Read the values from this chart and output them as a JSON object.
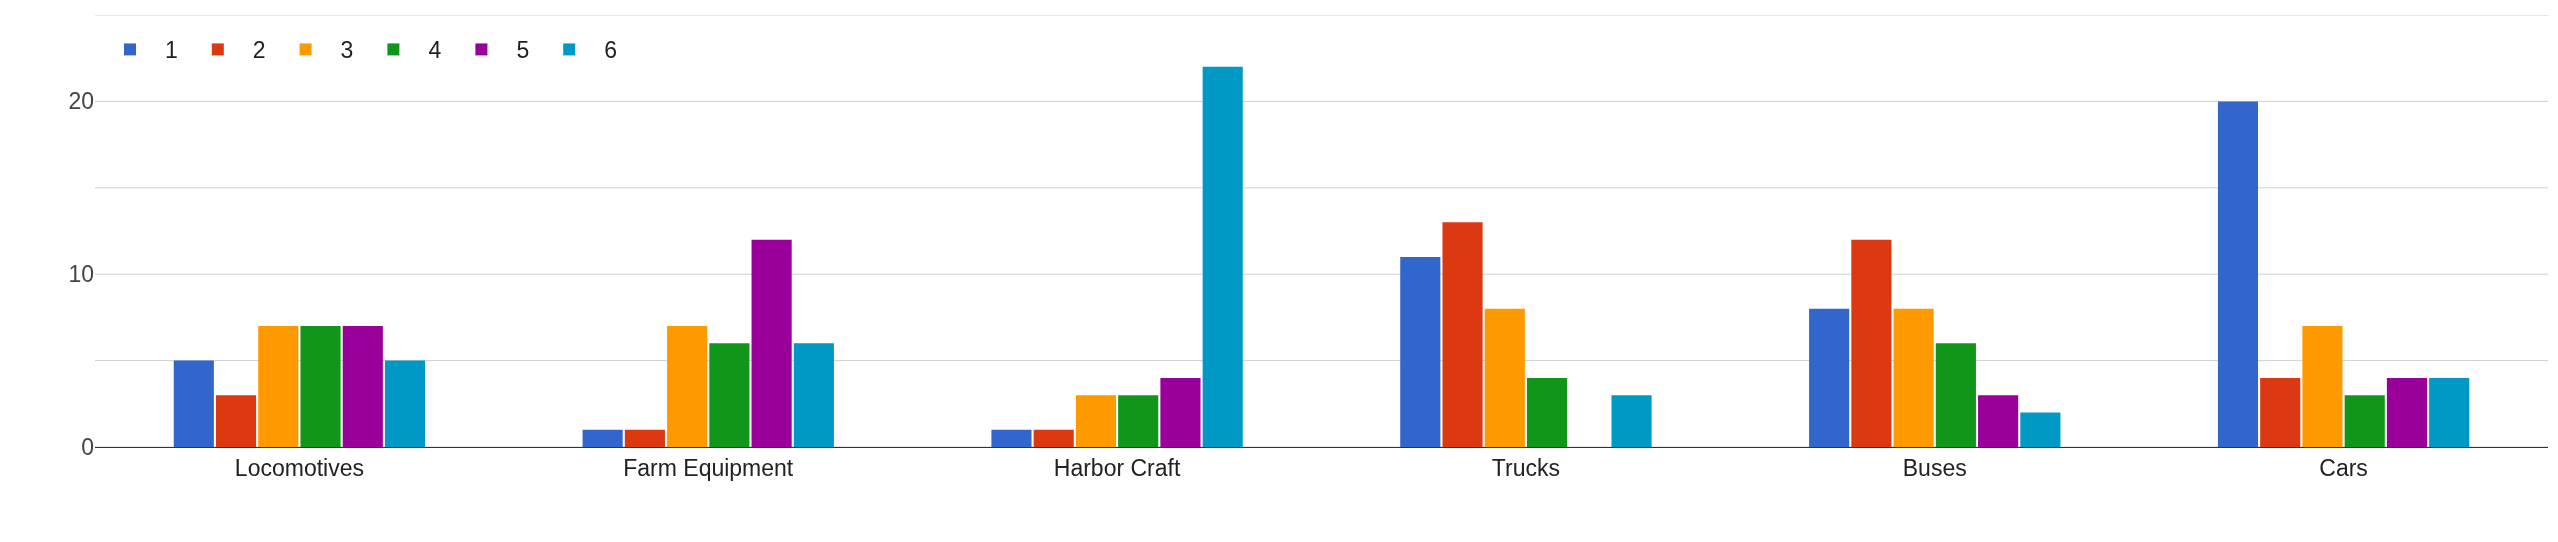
{
  "chart_data": {
    "type": "bar",
    "categories": [
      "Locomotives",
      "Farm Equipment",
      "Harbor Craft",
      "Trucks",
      "Buses",
      "Cars"
    ],
    "series": [
      {
        "name": "1",
        "color": "#3366cc",
        "values": [
          5,
          1,
          1,
          11,
          8,
          20
        ]
      },
      {
        "name": "2",
        "color": "#dc3912",
        "values": [
          3,
          1,
          1,
          13,
          12,
          4
        ]
      },
      {
        "name": "3",
        "color": "#ff9900",
        "values": [
          7,
          7,
          3,
          8,
          8,
          7
        ]
      },
      {
        "name": "4",
        "color": "#109618",
        "values": [
          7,
          6,
          3,
          4,
          6,
          3
        ]
      },
      {
        "name": "5",
        "color": "#990099",
        "values": [
          7,
          12,
          4,
          null,
          3,
          4
        ]
      },
      {
        "name": "6",
        "color": "#0099c6",
        "values": [
          5,
          6,
          22,
          3,
          2,
          4
        ]
      }
    ],
    "ylim": [
      0,
      25
    ],
    "yticks": [
      0,
      {
        "value": 5,
        "label": null
      },
      10,
      {
        "value": 15,
        "label": null
      },
      20,
      {
        "value": 25,
        "label": null
      }
    ],
    "grid": "y",
    "legend": "top left"
  }
}
